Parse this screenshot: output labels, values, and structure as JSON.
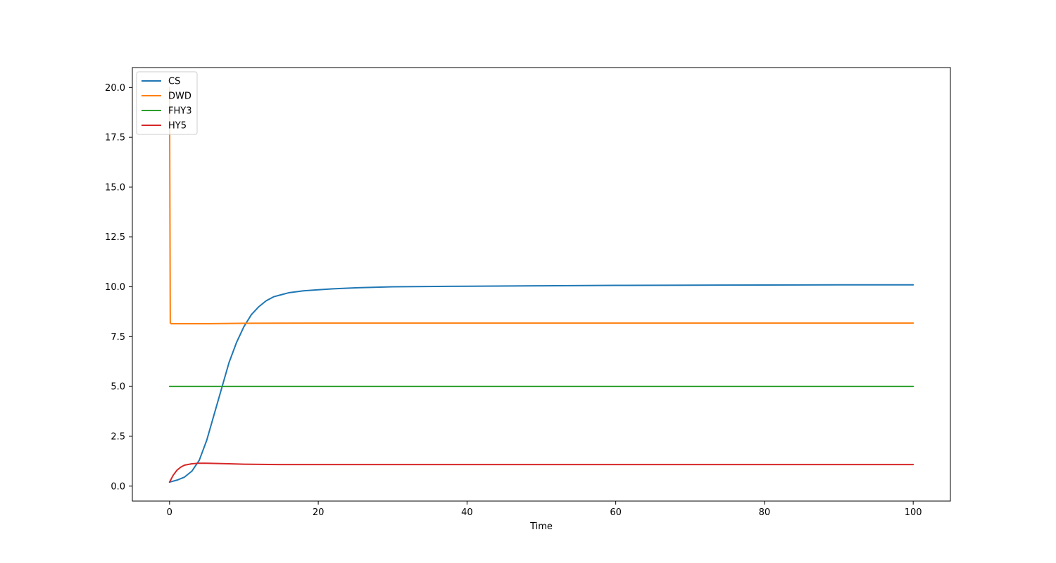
{
  "chart_data": {
    "type": "line",
    "title": "",
    "xlabel": "Time",
    "ylabel": "",
    "xlim": [
      -5,
      105
    ],
    "ylim": [
      -0.75,
      21
    ],
    "x_ticks": [
      0,
      20,
      40,
      60,
      80,
      100
    ],
    "x_tick_labels": [
      "0",
      "20",
      "40",
      "60",
      "80",
      "100"
    ],
    "y_ticks": [
      0,
      2.5,
      5,
      7.5,
      10,
      12.5,
      15,
      17.5,
      20
    ],
    "y_tick_labels": [
      "0.0",
      "2.5",
      "5.0",
      "7.5",
      "10.0",
      "12.5",
      "15.0",
      "17.5",
      "20.0"
    ],
    "grid": false,
    "legend_position": "upper-left",
    "series": [
      {
        "name": "CS",
        "color": "#1f77b4",
        "x": [
          0,
          1,
          2,
          3,
          4,
          5,
          6,
          7,
          8,
          9,
          10,
          11,
          12,
          13,
          14,
          15,
          16,
          18,
          20,
          22,
          25,
          30,
          40,
          50,
          60,
          70,
          80,
          90,
          100
        ],
        "y": [
          0.2,
          0.3,
          0.45,
          0.75,
          1.3,
          2.3,
          3.6,
          4.9,
          6.2,
          7.2,
          8.0,
          8.6,
          9.0,
          9.3,
          9.5,
          9.6,
          9.7,
          9.8,
          9.85,
          9.9,
          9.95,
          10.0,
          10.03,
          10.05,
          10.07,
          10.08,
          10.09,
          10.1,
          10.1
        ]
      },
      {
        "name": "DWD",
        "color": "#ff7f0e",
        "x": [
          0,
          0.1,
          0.2,
          1,
          5,
          10,
          20,
          40,
          60,
          80,
          100
        ],
        "y": [
          20.0,
          8.2,
          8.15,
          8.15,
          8.15,
          8.17,
          8.18,
          8.18,
          8.18,
          8.18,
          8.18
        ]
      },
      {
        "name": "FHY3",
        "color": "#2ca02c",
        "x": [
          0,
          20,
          40,
          60,
          80,
          100
        ],
        "y": [
          5.0,
          5.0,
          5.0,
          5.0,
          5.0,
          5.0
        ]
      },
      {
        "name": "HY5",
        "color": "#d62728",
        "x": [
          0,
          0.5,
          1,
          1.5,
          2,
          3,
          4,
          5,
          6,
          8,
          10,
          15,
          20,
          40,
          60,
          80,
          100
        ],
        "y": [
          0.2,
          0.55,
          0.8,
          0.95,
          1.05,
          1.12,
          1.15,
          1.15,
          1.14,
          1.12,
          1.1,
          1.08,
          1.08,
          1.08,
          1.08,
          1.08,
          1.08
        ]
      }
    ]
  }
}
